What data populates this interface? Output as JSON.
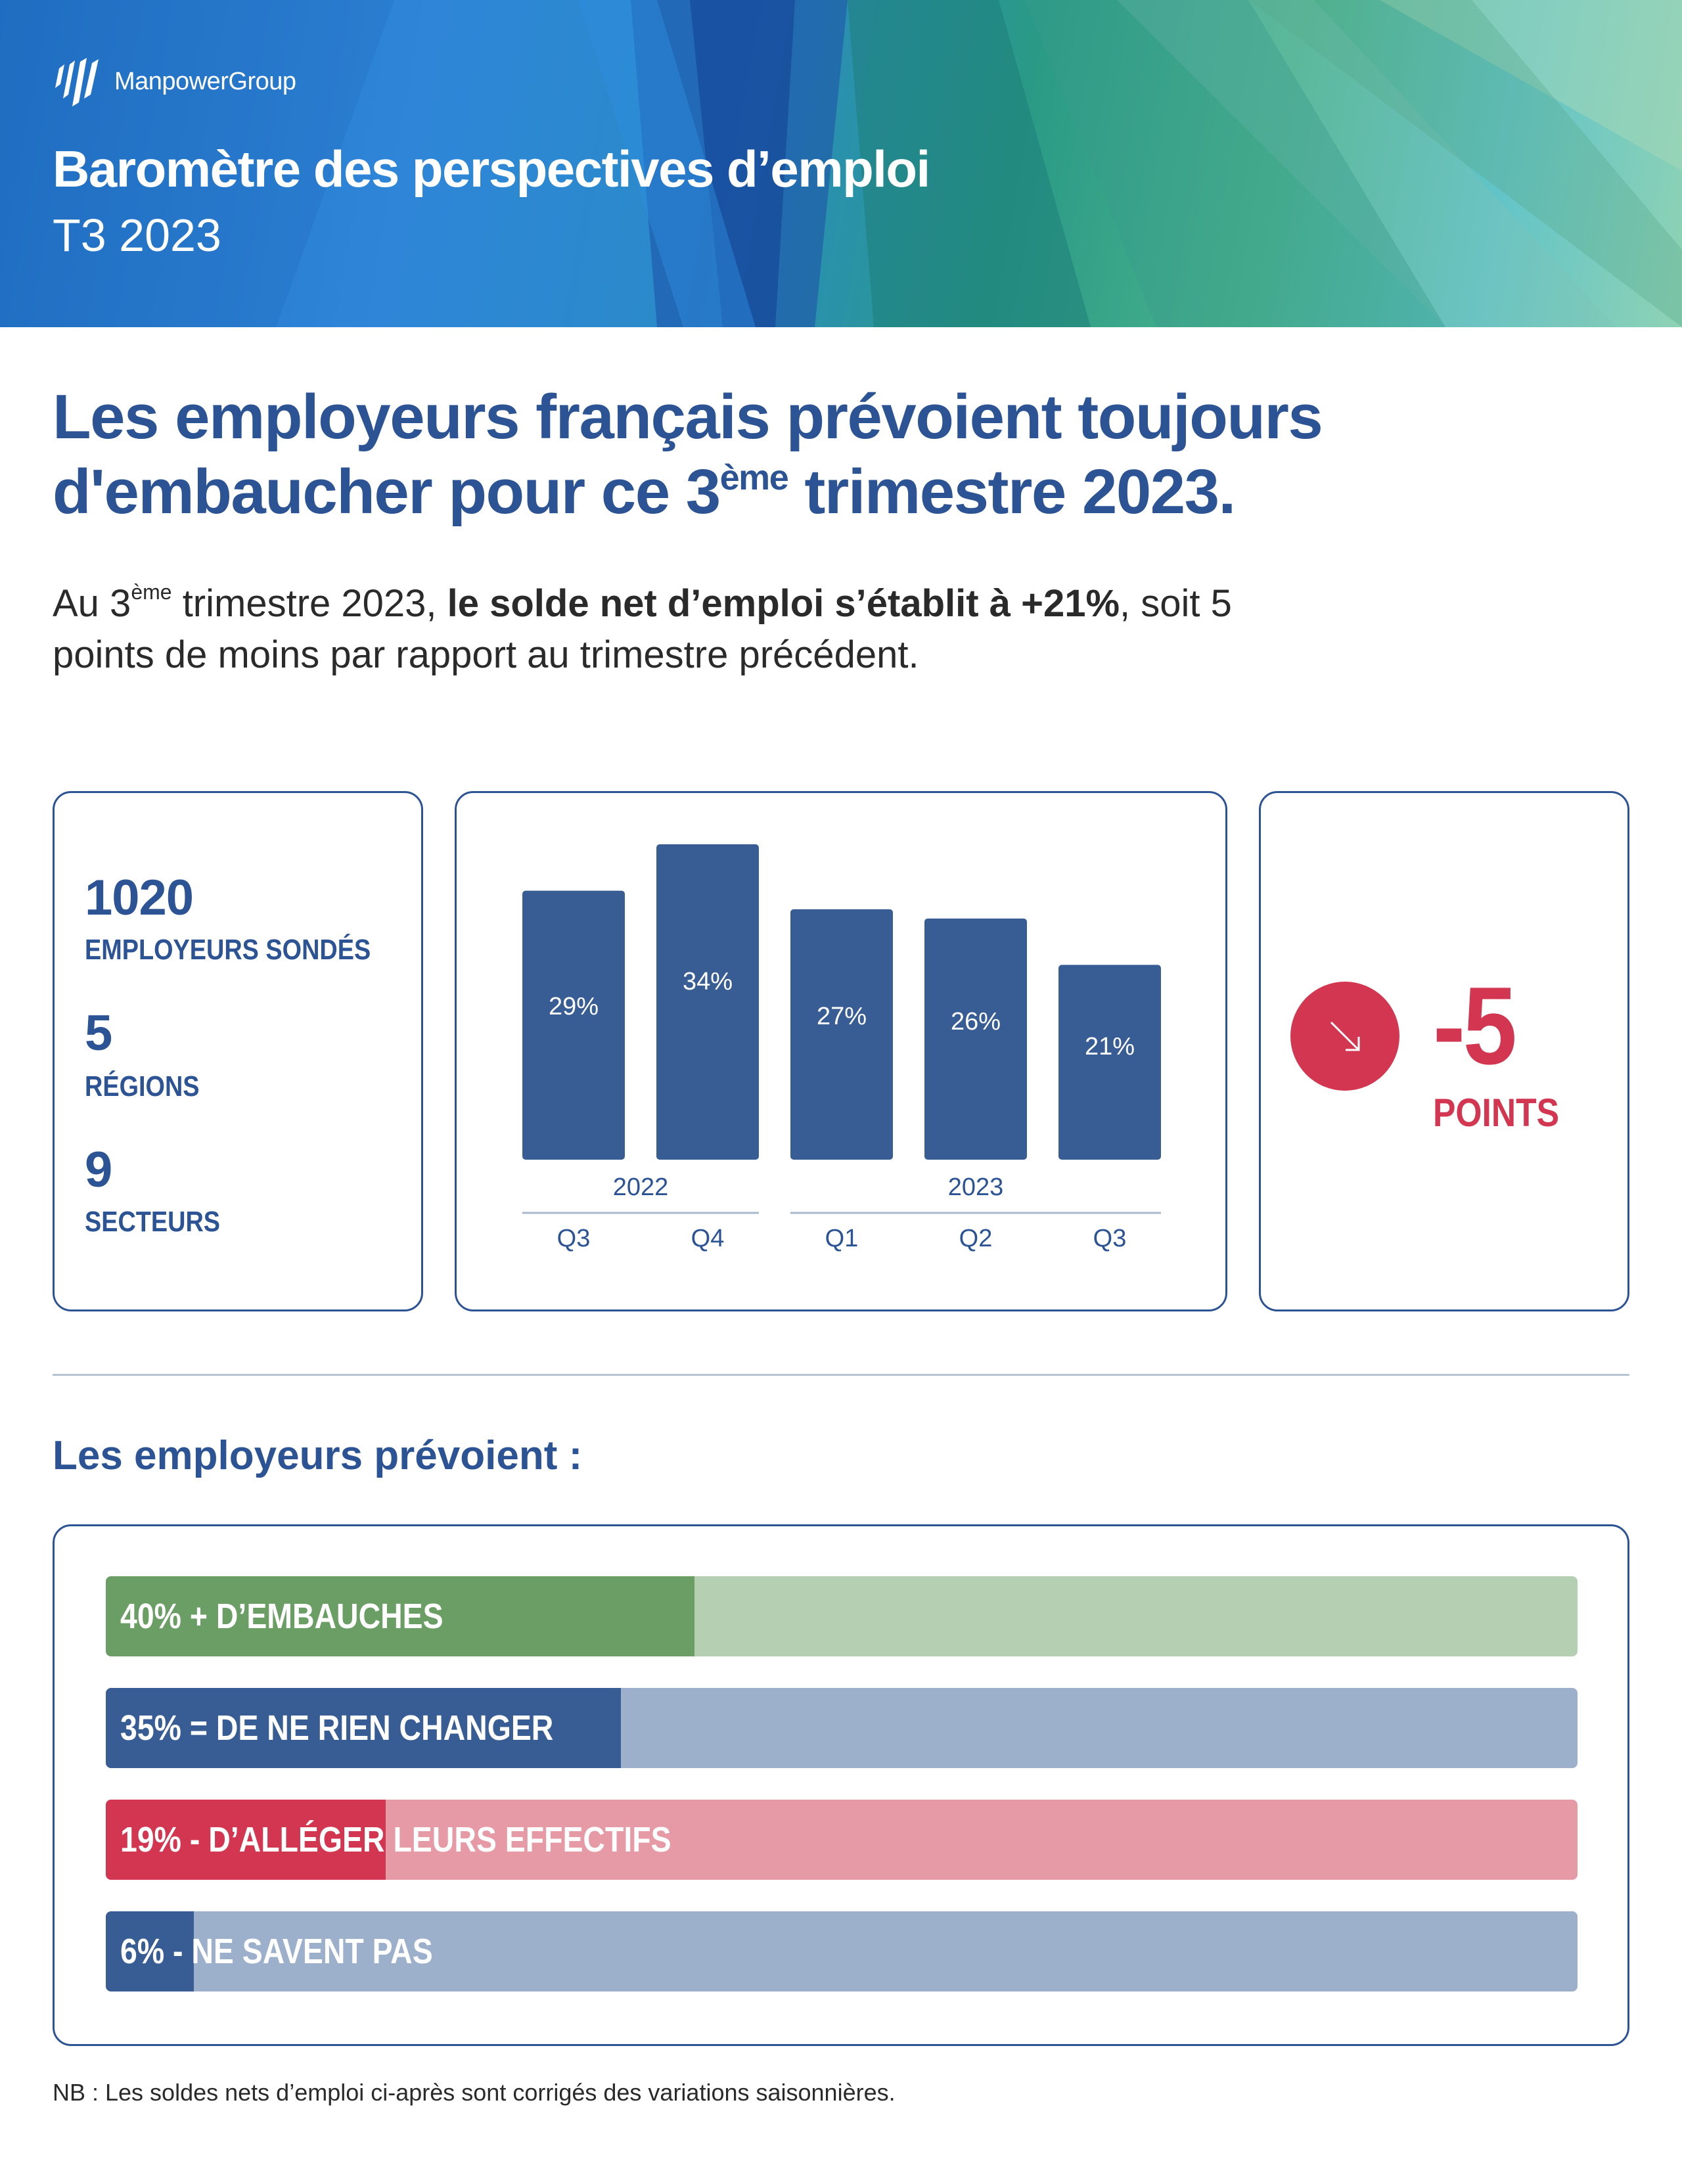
{
  "header": {
    "logo_text": "ManpowerGroup",
    "title": "Baromètre des perspectives d’emploi",
    "subtitle": "T3 2023"
  },
  "headline": {
    "line1": "Les employeurs français prévoient toujours",
    "line2_before": "d'embaucher pour ce 3",
    "line2_sup": "ème",
    "line2_after": " trimestre 2023."
  },
  "intro": {
    "t1": "Au 3",
    "sup": "ème",
    "t2": " trimestre 2023, ",
    "bold": "le solde net d’emploi s’établit à +21%",
    "t3": ", soit 5 points de moins par rapport au trimestre précédent."
  },
  "stats": [
    {
      "value": "1020",
      "label": "EMPLOYEURS SONDÉS"
    },
    {
      "value": "5",
      "label": "RÉGIONS"
    },
    {
      "value": "9",
      "label": "SECTEURS"
    }
  ],
  "chart_data": {
    "type": "bar",
    "categories": [
      "Q3",
      "Q4",
      "Q1",
      "Q2",
      "Q3"
    ],
    "year_groups": [
      {
        "label": "2022",
        "start": 0,
        "end": 1
      },
      {
        "label": "2023",
        "start": 2,
        "end": 4
      }
    ],
    "values": [
      29,
      34,
      27,
      26,
      21
    ],
    "data_labels": [
      "29%",
      "34%",
      "27%",
      "26%",
      "21%"
    ],
    "title": "",
    "xlabel": "",
    "ylabel": "",
    "ylim": [
      0,
      34
    ],
    "grid": false,
    "bar_color": "#385d94"
  },
  "delta": {
    "value": "-5",
    "label": "POINTS",
    "icon": "arrow-down-right-icon"
  },
  "section_title": "Les employeurs prévoient :",
  "outlook": [
    {
      "label": "40% + D’EMBAUCHES",
      "percent": 40,
      "color": "#6a9e65",
      "track": "#b4cfb2"
    },
    {
      "label": "35% = DE NE RIEN CHANGER",
      "percent": 35,
      "color": "#385d94",
      "track": "#9cafcb"
    },
    {
      "label": "19% - D’ALLÉGER LEURS EFFECTIFS",
      "percent": 19,
      "color": "#d23650",
      "track": "#e69aa6"
    },
    {
      "label": "6% - NE SAVENT PAS",
      "percent": 6,
      "color": "#385d94",
      "track": "#9cafcb"
    }
  ],
  "colors": {
    "brand_blue": "#2c5394",
    "accent_red": "#d23650"
  },
  "footnote": "NB : Les soldes nets d’emploi ci-après sont corrigés des variations saisonnières."
}
